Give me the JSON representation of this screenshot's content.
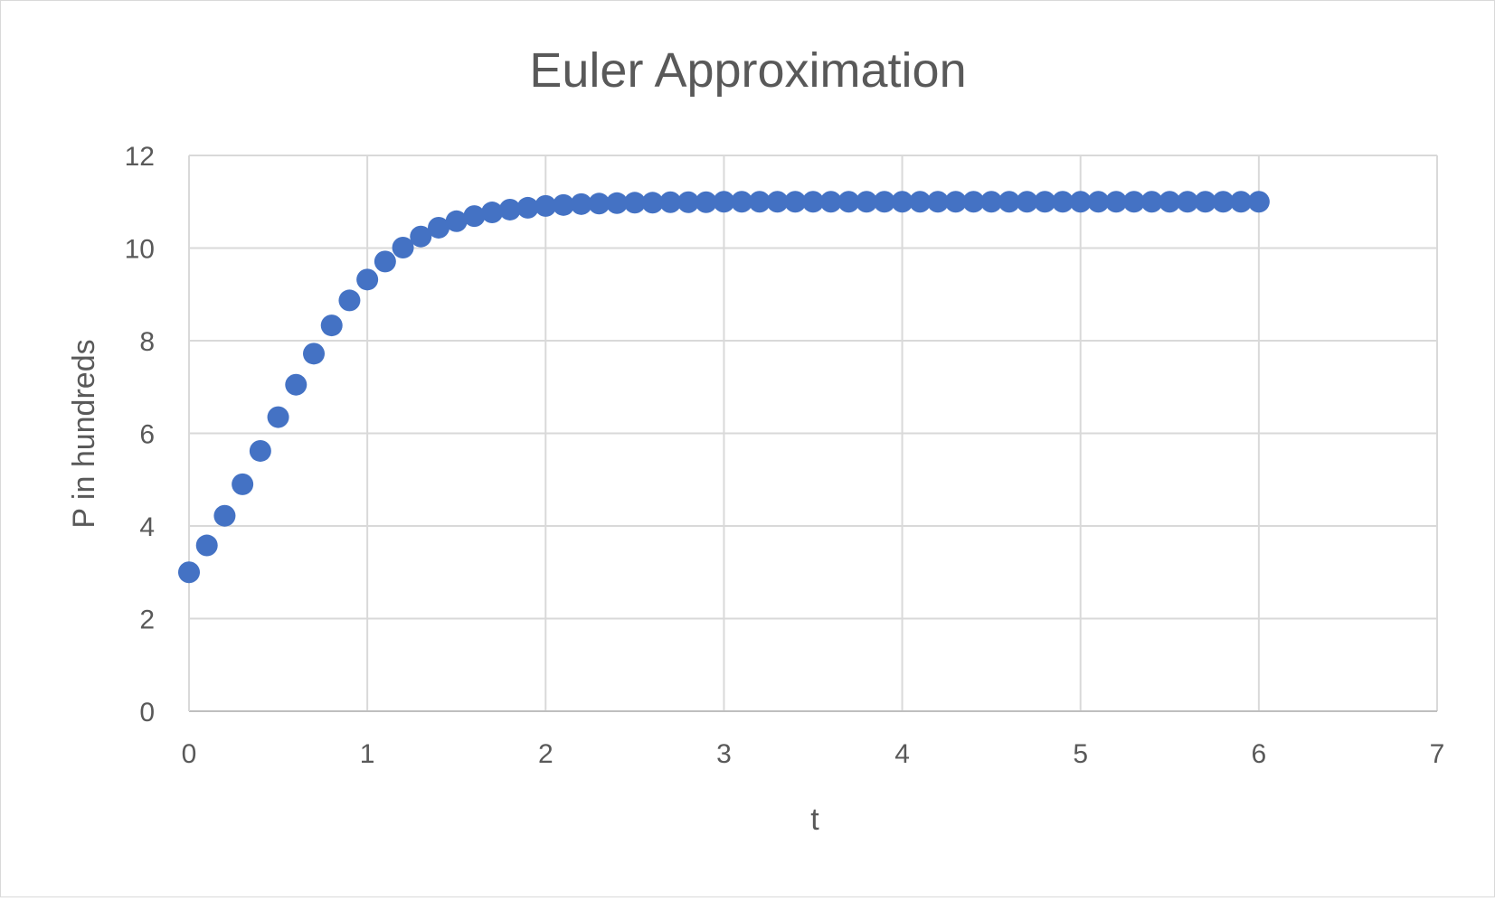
{
  "chart_data": {
    "type": "scatter",
    "title": "Euler Approximation",
    "xlabel": "t",
    "ylabel": "P in hundreds",
    "xlim": [
      0,
      7
    ],
    "ylim": [
      0,
      12
    ],
    "x_ticks": [
      0,
      1,
      2,
      3,
      4,
      5,
      6,
      7
    ],
    "y_ticks": [
      0,
      2,
      4,
      6,
      8,
      10,
      12
    ],
    "grid": true,
    "legend": "none",
    "marker_color": "#4472c4",
    "gridline_color": "#d9d9d9",
    "series": [
      {
        "x": [
          0,
          0.1,
          0.2,
          0.3,
          0.4,
          0.5,
          0.6,
          0.7,
          0.8,
          0.9,
          1,
          1.1,
          1.2,
          1.3,
          1.4,
          1.5,
          1.6,
          1.7,
          1.8,
          1.9,
          2,
          2.1,
          2.2,
          2.3,
          2.4,
          2.5,
          2.6,
          2.7,
          2.8,
          2.9,
          3,
          3.1,
          3.2,
          3.3,
          3.4,
          3.5,
          3.6,
          3.7,
          3.8,
          3.9,
          4,
          4.1,
          4.2,
          4.3,
          4.4,
          4.5,
          4.6,
          4.7,
          4.8,
          4.9,
          5,
          5.1,
          5.2,
          5.3,
          5.4,
          5.5,
          5.6,
          5.7,
          5.8,
          5.9,
          6
        ],
        "y": [
          3,
          3.58,
          4.22,
          4.9,
          5.62,
          6.35,
          7.05,
          7.72,
          8.33,
          8.87,
          9.32,
          9.71,
          10.01,
          10.25,
          10.44,
          10.58,
          10.69,
          10.77,
          10.83,
          10.87,
          10.91,
          10.93,
          10.95,
          10.96,
          10.97,
          10.98,
          10.98,
          10.99,
          10.99,
          10.99,
          11,
          11,
          11,
          11,
          11,
          11,
          11,
          11,
          11,
          11,
          11,
          11,
          11,
          11,
          11,
          11,
          11,
          11,
          11,
          11,
          11,
          11,
          11,
          11,
          11,
          11,
          11,
          11,
          11,
          11,
          11
        ]
      }
    ]
  }
}
